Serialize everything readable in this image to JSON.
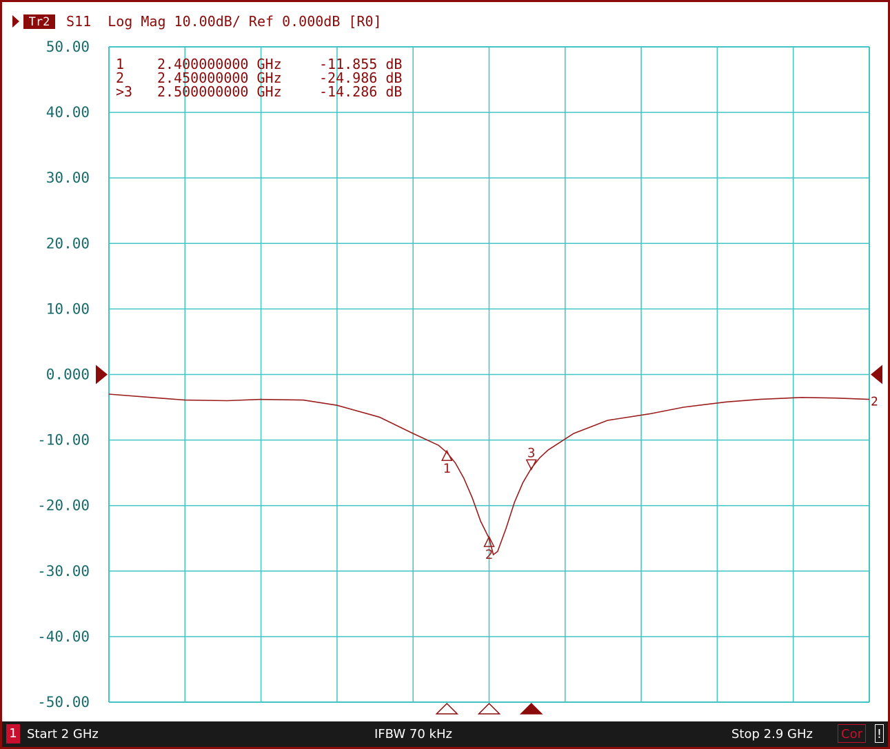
{
  "colors": {
    "border": "#8b0a0a",
    "grid": "#40c4c4",
    "trace": "#9b1c1c",
    "label_text": "#1a6b6b",
    "status_bg": "#1a1a1a",
    "channel_badge": "#c8102e"
  },
  "header": {
    "trace_badge": "Tr2",
    "trace_info": "S11  Log Mag 10.00dB/ Ref 0.000dB [R0]"
  },
  "chart_data": {
    "type": "line",
    "xlim": [
      2.0,
      2.9
    ],
    "ylim": [
      -50,
      50
    ],
    "grid": true,
    "y_tick_labels": [
      "50.00",
      "40.00",
      "30.00",
      "20.00",
      "10.00",
      "0.000",
      "-10.00",
      "-20.00",
      "-30.00",
      "-40.00",
      "-50.00"
    ],
    "y_tick_values": [
      50,
      40,
      30,
      20,
      10,
      0,
      -10,
      -20,
      -30,
      -40,
      -50
    ],
    "x_divisions": 10,
    "reference_level": 0,
    "series": [
      {
        "x": [
          2.0,
          2.05,
          2.09,
          2.14,
          2.18,
          2.23,
          2.27,
          2.32,
          2.36,
          2.39,
          2.4,
          2.41,
          2.42,
          2.43,
          2.44,
          2.45,
          2.455,
          2.46,
          2.47,
          2.48,
          2.49,
          2.5,
          2.51,
          2.52,
          2.55,
          2.59,
          2.64,
          2.68,
          2.73,
          2.77,
          2.82,
          2.86,
          2.9
        ],
        "y": [
          -3.0,
          -3.5,
          -3.9,
          -4.0,
          -3.8,
          -3.9,
          -4.7,
          -6.5,
          -9.0,
          -10.8,
          -11.9,
          -13.5,
          -15.8,
          -18.8,
          -22.4,
          -25.0,
          -27.5,
          -27.0,
          -23.5,
          -19.5,
          -16.5,
          -14.3,
          -12.7,
          -11.5,
          -9.0,
          -7.0,
          -6.0,
          -5.0,
          -4.2,
          -3.8,
          -3.5,
          -3.6,
          -3.8
        ]
      }
    ],
    "markers": [
      {
        "id": "1",
        "x": 2.4,
        "y": -11.855,
        "active": false
      },
      {
        "id": "2",
        "x": 2.45,
        "y": -24.986,
        "active": false
      },
      {
        "id": "3",
        "x": 2.5,
        "y": -14.286,
        "active": true
      }
    ],
    "marker_table": [
      {
        "prefix": " 1",
        "freq": "2.400000000 GHz",
        "value": "-11.855 dB"
      },
      {
        "prefix": " 2",
        "freq": "2.450000000 GHz",
        "value": "-24.986 dB"
      },
      {
        "prefix": ">3",
        "freq": "2.500000000 GHz",
        "value": "-14.286 dB"
      }
    ],
    "right_ref_label": "2"
  },
  "status": {
    "channel": "1",
    "start": "Start 2 GHz",
    "ifbw": "IFBW 70 kHz",
    "stop": "Stop 2.9 GHz",
    "cor": "Cor",
    "warn": "!"
  }
}
